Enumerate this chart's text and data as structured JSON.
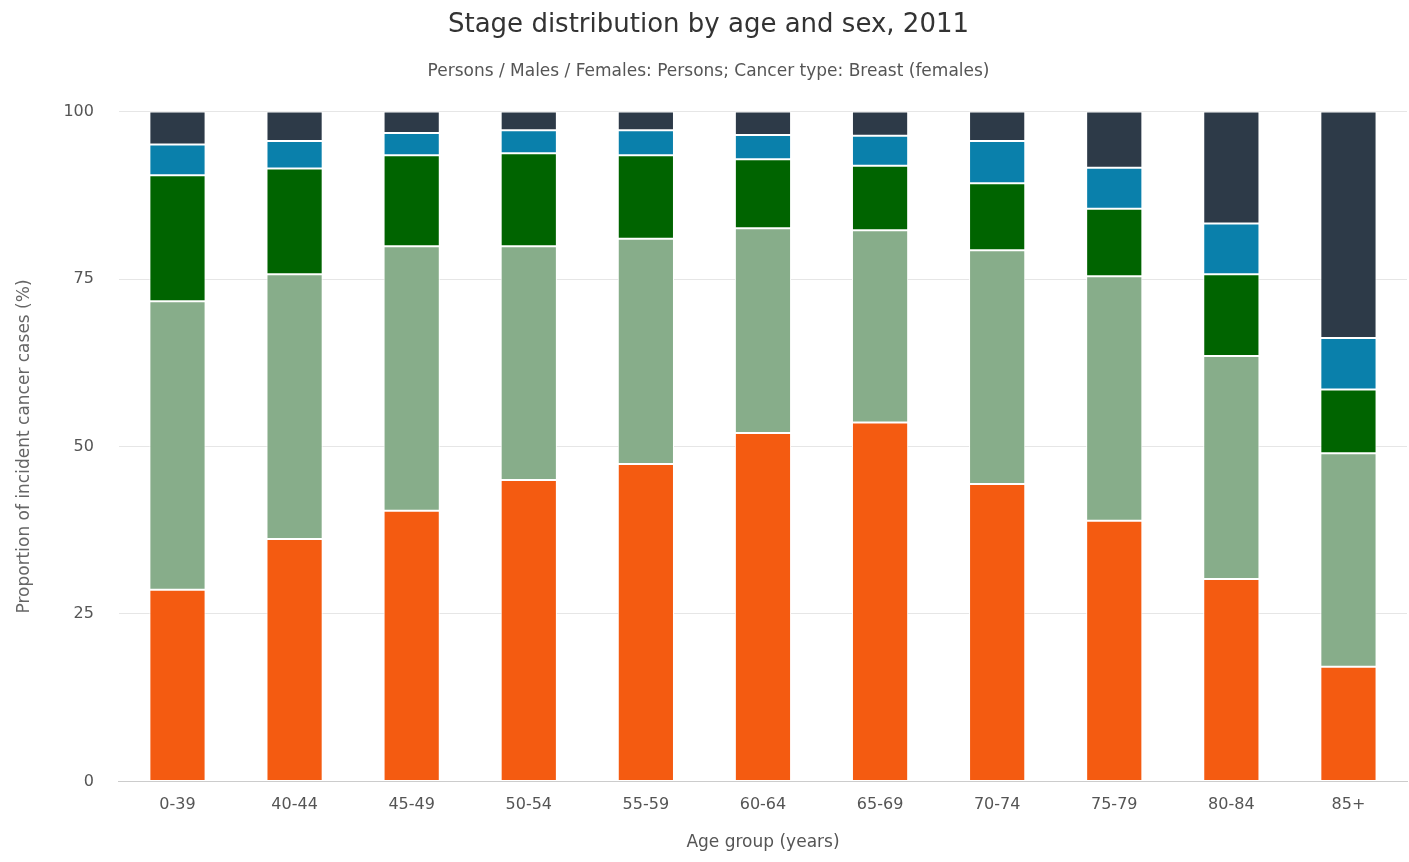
{
  "chart_data": {
    "type": "bar",
    "title": "Stage distribution by age and sex, 2011",
    "subtitle": "Persons / Males / Females: Persons; Cancer type: Breast (females)",
    "xlabel": "Age group (years)",
    "ylabel": "Proportion of incident cancer cases (%)",
    "categories": [
      "0-39",
      "40-44",
      "45-49",
      "50-54",
      "55-59",
      "60-64",
      "65-69",
      "70-74",
      "75-79",
      "80-84",
      "85+"
    ],
    "stacked": true,
    "ylim": [
      0,
      100
    ],
    "yticks": [
      0,
      25,
      50,
      75,
      100
    ],
    "grid": "y",
    "legend": false,
    "series": [
      {
        "color": "#f45b11",
        "values": [
          28.6,
          36.2,
          40.4,
          45.0,
          47.4,
          52.0,
          53.6,
          44.4,
          38.9,
          30.2,
          17.1
        ]
      },
      {
        "color": "#87ad8a",
        "values": [
          43.1,
          39.5,
          39.5,
          34.9,
          33.6,
          30.6,
          28.7,
          34.9,
          36.5,
          33.3,
          31.9
        ]
      },
      {
        "color": "#006400",
        "values": [
          18.8,
          15.8,
          13.6,
          13.9,
          12.5,
          10.3,
          9.6,
          10.0,
          10.1,
          12.2,
          9.5
        ]
      },
      {
        "color": "#0a80ab",
        "values": [
          4.6,
          4.1,
          3.3,
          3.4,
          3.7,
          3.6,
          4.5,
          6.3,
          6.1,
          7.6,
          7.7
        ]
      },
      {
        "color": "#2d3a48",
        "values": [
          4.9,
          4.4,
          3.2,
          2.8,
          2.8,
          3.5,
          3.6,
          4.4,
          8.4,
          16.7,
          33.8
        ]
      }
    ]
  }
}
